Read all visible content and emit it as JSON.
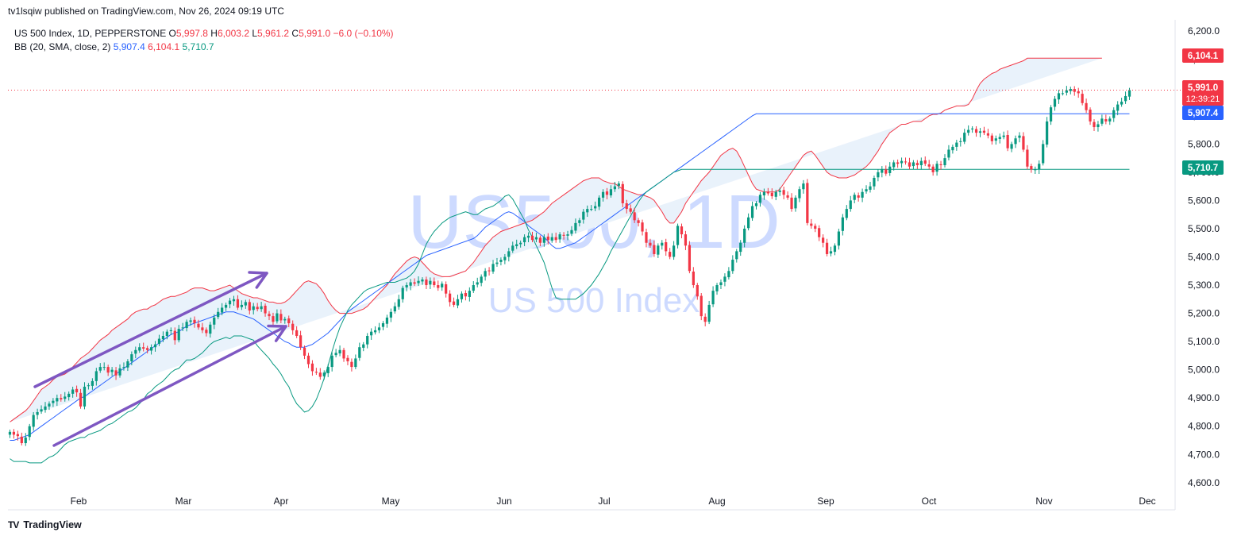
{
  "header": {
    "publisher_line": "tv1lsqiw published on TradingView.com, Nov 26, 2024 09:19 UTC"
  },
  "legend": {
    "symbol": "US 500 Index, 1D, PEPPERSTONE",
    "o_label": "O",
    "o_value": "5,997.8",
    "h_label": "H",
    "h_value": "6,003.2",
    "l_label": "L",
    "l_value": "5,961.2",
    "c_label": "C",
    "c_value": "5,991.0",
    "change": "−6.0 (−0.10%)",
    "bb_label": "BB (20, SMA, close, 2)",
    "bb_basis": "5,907.4",
    "bb_upper": "6,104.1",
    "bb_lower": "5,710.7"
  },
  "watermark": {
    "symbol": "US500, 1D",
    "name": "US 500 Index"
  },
  "price_labels": {
    "upper": "6,104.1",
    "last": "5,991.0",
    "countdown": "12:39:21",
    "basis": "5,907.4",
    "lower": "5,710.7"
  },
  "footer": {
    "brand": "TradingView",
    "logo": "TV"
  },
  "colors": {
    "up": "#089981",
    "down": "#f23645",
    "bb_upper": "#f23645",
    "bb_basis": "#2962ff",
    "bb_lower": "#089981",
    "band_fill": "#e9f2fb",
    "arrows": "#7e57c2",
    "watermark": "#c5d4ff"
  },
  "chart_data": {
    "type": "candlestick",
    "x_ticks": [
      "Feb",
      "Mar",
      "Apr",
      "May",
      "Jun",
      "Jul",
      "Aug",
      "Sep",
      "Oct",
      "Nov",
      "Dec"
    ],
    "y_ticks": [
      6200,
      6100,
      6000,
      5900,
      5800,
      5700,
      5600,
      5500,
      5400,
      5300,
      5200,
      5100,
      5000,
      4900,
      4800,
      4700,
      4600
    ],
    "y_tick_labels": [
      "6,200.0",
      "6,100.0",
      "6,000.0",
      "5,900.0",
      "5,800.0",
      "5,700.0",
      "5,600.0",
      "5,500.0",
      "5,400.0",
      "5,300.0",
      "5,200.0",
      "5,100.0",
      "5,000.0",
      "4,900.0",
      "4,800.0",
      "4,700.0",
      "4,600.0"
    ],
    "ylim": [
      4560,
      6240
    ],
    "closes": [
      4780,
      4770,
      4765,
      4740,
      4760,
      4800,
      4840,
      4850,
      4860,
      4870,
      4880,
      4890,
      4900,
      4895,
      4905,
      4915,
      4930,
      4920,
      4870,
      4940,
      4945,
      4960,
      4995,
      5010,
      5010,
      4990,
      5000,
      4980,
      5005,
      5010,
      5030,
      5055,
      5070,
      5080,
      5075,
      5070,
      5080,
      5090,
      5110,
      5120,
      5135,
      5140,
      5105,
      5145,
      5150,
      5170,
      5175,
      5165,
      5150,
      5140,
      5130,
      5160,
      5185,
      5205,
      5220,
      5230,
      5245,
      5250,
      5220,
      5230,
      5240,
      5210,
      5225,
      5215,
      5225,
      5200,
      5190,
      5170,
      5200,
      5175,
      5180,
      5165,
      5140,
      5120,
      5080,
      5050,
      5020,
      4995,
      4990,
      4975,
      4990,
      5010,
      5050,
      5060,
      5070,
      5040,
      5030,
      5010,
      5040,
      5080,
      5090,
      5120,
      5135,
      5140,
      5150,
      5165,
      5185,
      5205,
      5225,
      5250,
      5290,
      5300,
      5310,
      5305,
      5315,
      5320,
      5300,
      5315,
      5300,
      5290,
      5305,
      5270,
      5240,
      5230,
      5250,
      5270,
      5260,
      5280,
      5300,
      5310,
      5330,
      5350,
      5350,
      5375,
      5380,
      5390,
      5400,
      5420,
      5440,
      5445,
      5450,
      5470,
      5475,
      5460,
      5470,
      5450,
      5470,
      5460,
      5470,
      5460,
      5480,
      5475,
      5480,
      5495,
      5520,
      5530,
      5560,
      5570,
      5570,
      5580,
      5610,
      5630,
      5620,
      5640,
      5650,
      5660,
      5590,
      5570,
      5560,
      5530,
      5520,
      5490,
      5450,
      5440,
      5410,
      5440,
      5450,
      5420,
      5400,
      5440,
      5510,
      5480,
      5440,
      5350,
      5300,
      5260,
      5190,
      5170,
      5230,
      5280,
      5300,
      5310,
      5330,
      5350,
      5390,
      5420,
      5450,
      5500,
      5540,
      5580,
      5590,
      5620,
      5630,
      5625,
      5615,
      5630,
      5635,
      5620,
      5610,
      5570,
      5610,
      5640,
      5660,
      5520,
      5510,
      5500,
      5470,
      5450,
      5410,
      5420,
      5440,
      5490,
      5540,
      5570,
      5600,
      5620,
      5610,
      5630,
      5640,
      5650,
      5680,
      5700,
      5710,
      5695,
      5720,
      5735,
      5730,
      5740,
      5735,
      5720,
      5735,
      5725,
      5740,
      5730,
      5720,
      5700,
      5730,
      5725,
      5750,
      5780,
      5790,
      5805,
      5810,
      5840,
      5850,
      5855,
      5840,
      5845,
      5840,
      5830,
      5810,
      5820,
      5825,
      5830,
      5785,
      5800,
      5820,
      5830,
      5780,
      5720,
      5710,
      5710,
      5730,
      5800,
      5880,
      5930,
      5960,
      5980,
      5980,
      5990,
      5995,
      5985,
      5980,
      5945,
      5920,
      5880,
      5860,
      5870,
      5890,
      5880,
      5890,
      5920,
      5940,
      5950,
      5970,
      5991
    ],
    "bb_upper": [
      4815,
      4825,
      4835,
      4845,
      4855,
      4870,
      4890,
      4910,
      4930,
      4940,
      4950,
      4965,
      4975,
      4980,
      4985,
      4995,
      5010,
      5025,
      5040,
      5050,
      5060,
      5075,
      5090,
      5105,
      5115,
      5125,
      5140,
      5150,
      5160,
      5170,
      5180,
      5195,
      5205,
      5210,
      5215,
      5215,
      5225,
      5230,
      5240,
      5250,
      5255,
      5260,
      5260,
      5265,
      5270,
      5275,
      5285,
      5290,
      5290,
      5290,
      5285,
      5280,
      5280,
      5285,
      5290,
      5295,
      5300,
      5290,
      5280,
      5270,
      5265,
      5260,
      5255,
      5255,
      5250,
      5245,
      5240,
      5240,
      5235,
      5235,
      5240,
      5250,
      5265,
      5280,
      5295,
      5310,
      5315,
      5310,
      5305,
      5290,
      5270,
      5245,
      5225,
      5210,
      5200,
      5200,
      5200,
      5200,
      5205,
      5210,
      5215,
      5225,
      5240,
      5255,
      5270,
      5285,
      5300,
      5320,
      5340,
      5355,
      5370,
      5385,
      5395,
      5400,
      5395,
      5380,
      5365,
      5350,
      5340,
      5335,
      5330,
      5330,
      5330,
      5335,
      5340,
      5345,
      5350,
      5365,
      5380,
      5400,
      5420,
      5440,
      5455,
      5470,
      5480,
      5490,
      5495,
      5500,
      5505,
      5510,
      5515,
      5520,
      5525,
      5530,
      5540,
      5550,
      5560,
      5575,
      5590,
      5600,
      5610,
      5620,
      5630,
      5640,
      5650,
      5660,
      5670,
      5675,
      5680,
      5680,
      5680,
      5670,
      5665,
      5660,
      5660,
      5650,
      5640,
      5635,
      5630,
      5625,
      5620,
      5620,
      5615,
      5610,
      5600,
      5580,
      5560,
      5535,
      5520,
      5520,
      5540,
      5560,
      5590,
      5610,
      5630,
      5650,
      5670,
      5685,
      5700,
      5720,
      5740,
      5760,
      5770,
      5780,
      5785,
      5775,
      5750,
      5720,
      5690,
      5660,
      5640,
      5635,
      5630,
      5630,
      5630,
      5630,
      5640,
      5660,
      5680,
      5700,
      5720,
      5740,
      5760,
      5770,
      5775,
      5760,
      5740,
      5720,
      5700,
      5690,
      5685,
      5680,
      5680,
      5680,
      5685,
      5690,
      5700,
      5710,
      5720,
      5735,
      5755,
      5775,
      5800,
      5820,
      5840,
      5850,
      5860,
      5870,
      5870,
      5875,
      5880,
      5880,
      5880,
      5890,
      5900,
      5905,
      5905,
      5910,
      5920,
      5925,
      5930,
      5935,
      5935,
      5935,
      5940,
      5960,
      5990,
      6015,
      6030,
      6040,
      6050,
      6055,
      6065,
      6070,
      6075,
      6080,
      6085,
      6090,
      6095,
      6104,
      6104,
      6104,
      6104,
      6104,
      6104,
      6104,
      6104,
      6104,
      6104,
      6104,
      6104,
      6104,
      6104,
      6104,
      6104,
      6104,
      6104,
      6104,
      6104
    ],
    "bb_basis": [
      4750,
      4750,
      4755,
      4760,
      4765,
      4770,
      4780,
      4790,
      4800,
      4810,
      4820,
      4830,
      4840,
      4850,
      4860,
      4870,
      4880,
      4890,
      4900,
      4905,
      4915,
      4925,
      4935,
      4945,
      4955,
      4965,
      4975,
      4985,
      4995,
      5005,
      5015,
      5025,
      5035,
      5045,
      5055,
      5065,
      5075,
      5085,
      5095,
      5105,
      5115,
      5125,
      5130,
      5135,
      5145,
      5155,
      5160,
      5165,
      5170,
      5175,
      5180,
      5185,
      5190,
      5195,
      5200,
      5205,
      5205,
      5205,
      5200,
      5195,
      5190,
      5185,
      5180,
      5170,
      5160,
      5150,
      5140,
      5130,
      5120,
      5110,
      5100,
      5095,
      5085,
      5080,
      5080,
      5080,
      5085,
      5090,
      5100,
      5110,
      5120,
      5130,
      5145,
      5160,
      5175,
      5190,
      5205,
      5215,
      5225,
      5235,
      5245,
      5255,
      5265,
      5275,
      5285,
      5295,
      5305,
      5315,
      5325,
      5335,
      5345,
      5355,
      5365,
      5375,
      5385,
      5395,
      5405,
      5410,
      5415,
      5420,
      5425,
      5430,
      5435,
      5440,
      5445,
      5450,
      5455,
      5460,
      5465,
      5475,
      5490,
      5505,
      5515,
      5525,
      5535,
      5545,
      5555,
      5560,
      5555,
      5545,
      5535,
      5525,
      5510,
      5500,
      5490,
      5480,
      5470,
      5455,
      5440,
      5430,
      5430,
      5435,
      5440,
      5445,
      5450,
      5460,
      5470,
      5480,
      5490,
      5500,
      5510,
      5520,
      5530,
      5540,
      5550,
      5560,
      5570,
      5580,
      5590,
      5600,
      5610,
      5620,
      5630,
      5640,
      5650,
      5660,
      5670,
      5680,
      5690,
      5700,
      5710,
      5720,
      5730,
      5740,
      5750,
      5760,
      5770,
      5780,
      5790,
      5800,
      5810,
      5820,
      5830,
      5840,
      5850,
      5860,
      5870,
      5880,
      5890,
      5900,
      5907,
      5907,
      5907,
      5907,
      5907,
      5907,
      5907,
      5907,
      5907,
      5907,
      5907,
      5907,
      5907,
      5907,
      5907,
      5907,
      5907,
      5907,
      5907,
      5907,
      5907,
      5907,
      5907,
      5907,
      5907,
      5907,
      5907,
      5907,
      5907,
      5907,
      5907,
      5907,
      5907,
      5907,
      5907,
      5907,
      5907,
      5907,
      5907,
      5907,
      5907,
      5907,
      5907,
      5907,
      5907,
      5907,
      5907,
      5907,
      5907,
      5907,
      5907,
      5907,
      5907,
      5907,
      5907,
      5907,
      5907,
      5907,
      5907,
      5907,
      5907,
      5907,
      5907,
      5907,
      5907,
      5907,
      5907,
      5907,
      5907,
      5907,
      5907,
      5907,
      5907,
      5907,
      5907,
      5907,
      5907,
      5907,
      5907,
      5907,
      5907,
      5907,
      5907,
      5907,
      5907,
      5907,
      5907,
      5907,
      5907,
      5907,
      5907,
      5907,
      5907,
      5907,
      5907,
      5907,
      5907,
      5907,
      5907,
      5907,
      5907,
      5907,
      5907,
      5907
    ],
    "bb_lower": [
      4685,
      4675,
      4675,
      4675,
      4675,
      4670,
      4670,
      4670,
      4670,
      4680,
      4690,
      4695,
      4705,
      4720,
      4735,
      4745,
      4750,
      4755,
      4760,
      4760,
      4770,
      4775,
      4780,
      4785,
      4795,
      4805,
      4810,
      4820,
      4830,
      4840,
      4850,
      4855,
      4865,
      4880,
      4895,
      4915,
      4925,
      4940,
      4950,
      4960,
      4975,
      4990,
      5000,
      5005,
      5020,
      5035,
      5035,
      5040,
      5050,
      5060,
      5075,
      5090,
      5100,
      5105,
      5110,
      5115,
      5110,
      5120,
      5120,
      5120,
      5115,
      5110,
      5105,
      5085,
      5070,
      5055,
      5040,
      5020,
      5005,
      4985,
      4960,
      4940,
      4905,
      4880,
      4865,
      4850,
      4855,
      4870,
      4895,
      4930,
      4970,
      5015,
      5065,
      5110,
      5150,
      5180,
      5210,
      5230,
      5245,
      5260,
      5275,
      5285,
      5290,
      5295,
      5300,
      5305,
      5310,
      5310,
      5310,
      5315,
      5320,
      5325,
      5335,
      5350,
      5375,
      5410,
      5445,
      5470,
      5490,
      5505,
      5520,
      5530,
      5540,
      5545,
      5550,
      5555,
      5560,
      5555,
      5550,
      5550,
      5560,
      5570,
      5575,
      5580,
      5590,
      5600,
      5615,
      5620,
      5605,
      5580,
      5555,
      5530,
      5495,
      5470,
      5440,
      5410,
      5380,
      5335,
      5290,
      5255,
      5250,
      5250,
      5250,
      5250,
      5250,
      5260,
      5270,
      5285,
      5300,
      5320,
      5340,
      5365,
      5390,
      5420,
      5445,
      5470,
      5495,
      5520,
      5545,
      5570,
      5595,
      5615,
      5630,
      5640,
      5650,
      5660,
      5670,
      5680,
      5690,
      5700,
      5705,
      5710,
      5710,
      5710,
      5710,
      5710,
      5710,
      5710,
      5710,
      5710,
      5710,
      5710,
      5710,
      5710,
      5710,
      5710,
      5710,
      5710,
      5710,
      5710,
      5710,
      5710,
      5710,
      5710,
      5710,
      5710,
      5710,
      5710,
      5710,
      5710,
      5710,
      5710,
      5710,
      5710,
      5710,
      5710,
      5710,
      5710,
      5710,
      5710,
      5710,
      5710,
      5710,
      5710,
      5710,
      5710,
      5710,
      5710,
      5710,
      5710,
      5710,
      5710,
      5710,
      5710,
      5710,
      5710,
      5710,
      5710,
      5710,
      5710,
      5710,
      5710,
      5710,
      5710,
      5710,
      5710,
      5710,
      5710,
      5710,
      5710,
      5710,
      5710,
      5710,
      5710,
      5710,
      5710,
      5710,
      5710,
      5710,
      5710,
      5710,
      5710,
      5710,
      5710,
      5710,
      5710,
      5710,
      5710,
      5710,
      5710,
      5710,
      5710,
      5710,
      5710,
      5710,
      5710,
      5710,
      5710,
      5710,
      5710,
      5710,
      5710,
      5710,
      5710,
      5710,
      5710,
      5710,
      5710,
      5710,
      5710,
      5710,
      5710,
      5710,
      5710,
      5710,
      5710,
      5710,
      5710,
      5710,
      5710
    ],
    "last_price": 5991.0
  }
}
